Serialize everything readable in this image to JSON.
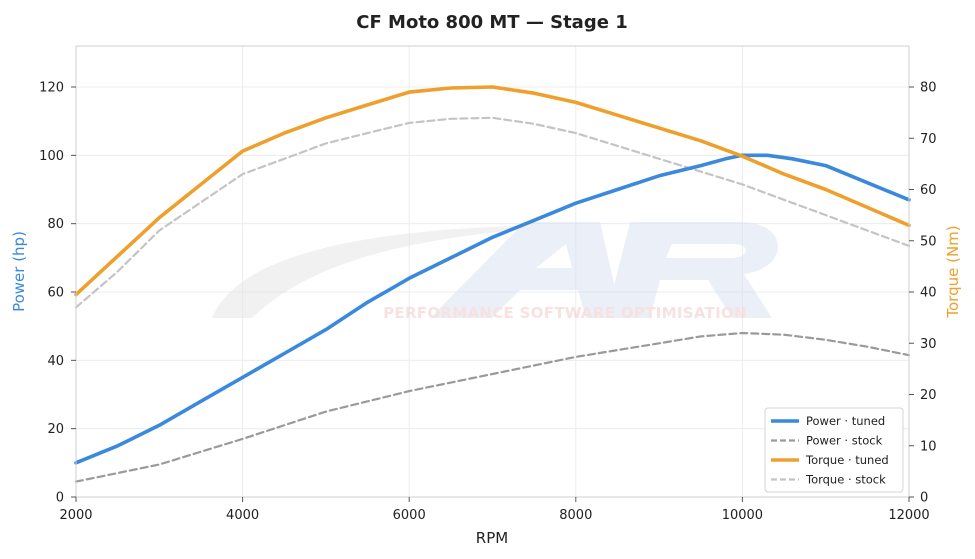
{
  "chart_data": {
    "type": "line",
    "title": "CF Moto 800 MT — Stage 1",
    "xlabel": "RPM",
    "ylabel_left": "Power (hp)",
    "ylabel_right": "Torque (Nm)",
    "xlim": [
      2000,
      12000
    ],
    "ylim_left": [
      0,
      132
    ],
    "ylim_right": [
      0,
      88
    ],
    "x_ticks": [
      2000,
      4000,
      6000,
      8000,
      10000,
      12000
    ],
    "y_ticks_left": [
      0,
      20,
      40,
      60,
      80,
      100,
      120
    ],
    "y_ticks_right": [
      0,
      10,
      20,
      30,
      40,
      50,
      60,
      70,
      80
    ],
    "grid": true,
    "legend_position": "bottom-right",
    "colors": {
      "power_tuned": "#3a89dc",
      "power_stock": "#9a9a9a",
      "torque_tuned": "#ee9f2c",
      "torque_stock": "#c4c4c4",
      "left_axis_label": "#3a89dc",
      "right_axis_label": "#ee9f2c"
    },
    "watermark_text": "PERFORMANCE SOFTWARE OPTIMISATION",
    "series": [
      {
        "name": "Power · tuned",
        "axis": "left",
        "style": "solid",
        "x": [
          2000,
          2500,
          3000,
          3500,
          4000,
          4500,
          5000,
          5500,
          6000,
          6500,
          7000,
          7500,
          8000,
          8500,
          9000,
          9500,
          9800,
          10000,
          10300,
          10600,
          11000,
          11500,
          12000
        ],
        "values": [
          10,
          15,
          21,
          28,
          35,
          42,
          49,
          57,
          64,
          70,
          76,
          81,
          86,
          90,
          94,
          97,
          99,
          100,
          100,
          99,
          97,
          92,
          87
        ]
      },
      {
        "name": "Power · stock",
        "axis": "left",
        "style": "dashed",
        "x": [
          2000,
          3000,
          4000,
          5000,
          6000,
          7000,
          8000,
          9000,
          9500,
          10000,
          10500,
          11000,
          11500,
          12000
        ],
        "values": [
          4.5,
          9.5,
          17,
          25,
          31,
          36,
          41,
          45,
          47,
          48,
          47.5,
          46,
          44,
          41.5
        ]
      },
      {
        "name": "Torque · tuned",
        "axis": "right",
        "style": "solid",
        "x": [
          2000,
          2500,
          3000,
          3500,
          4000,
          4500,
          5000,
          5500,
          6000,
          6500,
          7000,
          7500,
          8000,
          8500,
          9000,
          9500,
          10000,
          10500,
          11000,
          11500,
          12000
        ],
        "values": [
          39.5,
          47,
          54.5,
          61,
          67.5,
          71,
          74,
          76.5,
          79,
          79.8,
          80,
          78.8,
          77,
          74.5,
          72,
          69.5,
          66.5,
          63,
          60,
          56.5,
          53
        ]
      },
      {
        "name": "Torque · stock",
        "axis": "right",
        "style": "dashed",
        "x": [
          2000,
          2500,
          3000,
          3500,
          4000,
          4500,
          5000,
          5500,
          6000,
          6500,
          7000,
          7500,
          8000,
          8500,
          9000,
          9500,
          10000,
          10500,
          11000,
          11500,
          12000
        ],
        "values": [
          37,
          44,
          52,
          57.5,
          63,
          66,
          69,
          71,
          73,
          73.8,
          74,
          72.8,
          71,
          68.5,
          66,
          63.5,
          61,
          58,
          55,
          52,
          49
        ]
      }
    ]
  }
}
